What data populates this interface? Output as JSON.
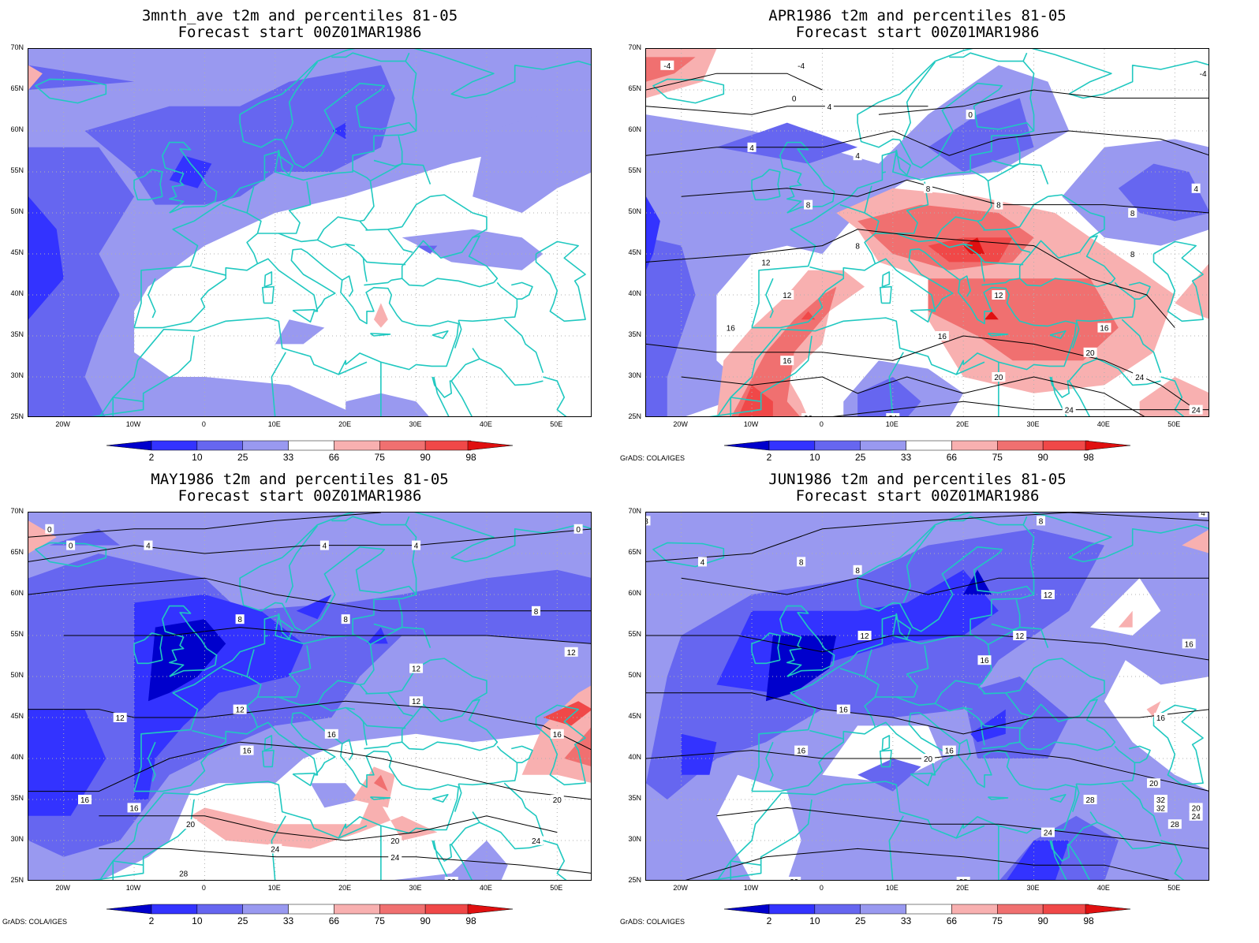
{
  "panels": [
    {
      "id": "p1",
      "title_line1": "3mnth_ave t2m and percentiles 81-05",
      "title_line2": "Forecast start 00Z01MAR1986",
      "contours": []
    },
    {
      "id": "p2",
      "title_line1": "APR1986 t2m and percentiles 81-05",
      "title_line2": "Forecast start 00Z01MAR1986",
      "contours": [
        "-4",
        "-4",
        "-4",
        "0",
        "0",
        "4",
        "4",
        "4",
        "4",
        "8",
        "8",
        "8",
        "8",
        "8",
        "8",
        "12",
        "12",
        "12",
        "16",
        "16",
        "16",
        "16",
        "20",
        "20",
        "20",
        "24",
        "24",
        "24",
        "24"
      ]
    },
    {
      "id": "p3",
      "title_line1": "MAY1986 t2m and percentiles 81-05",
      "title_line2": "Forecast start 00Z01MAR1986",
      "contours": [
        "0",
        "0",
        "4",
        "4",
        "4",
        "0",
        "8",
        "8",
        "8",
        "12",
        "12",
        "12",
        "12",
        "12",
        "16",
        "16",
        "16",
        "16",
        "16",
        "20",
        "20",
        "20",
        "24",
        "24",
        "24",
        "28",
        "28",
        "32"
      ]
    },
    {
      "id": "p4",
      "title_line1": "JUN1986 t2m and percentiles 81-05",
      "title_line2": "Forecast start 00Z01MAR1986",
      "contours": [
        "4",
        "8",
        "8",
        "8",
        "4",
        "8",
        "12",
        "12",
        "12",
        "16",
        "16",
        "16",
        "16",
        "16",
        "16",
        "20",
        "20",
        "20",
        "24",
        "24",
        "28",
        "28",
        "32",
        "32",
        "20",
        "28"
      ]
    }
  ],
  "lat_labels": [
    "70N",
    "65N",
    "60N",
    "55N",
    "50N",
    "45N",
    "40N",
    "35N",
    "30N",
    "25N"
  ],
  "lon_labels": [
    "20W",
    "10W",
    "0",
    "10E",
    "20E",
    "30E",
    "40E",
    "50E"
  ],
  "colorbar": {
    "labels": [
      "2",
      "10",
      "25",
      "33",
      "66",
      "75",
      "90",
      "98"
    ],
    "colors": [
      "#0000cc",
      "#3333ff",
      "#6666f0",
      "#9999f0",
      "#ffffff",
      "#f8b0b0",
      "#f07070",
      "#f04848",
      "#e01010"
    ]
  },
  "credit": "GrADS: COLA/IGES",
  "colors": {
    "coast": "#20c8c0",
    "contour": "#000000",
    "grid": "#b0b0b0"
  }
}
